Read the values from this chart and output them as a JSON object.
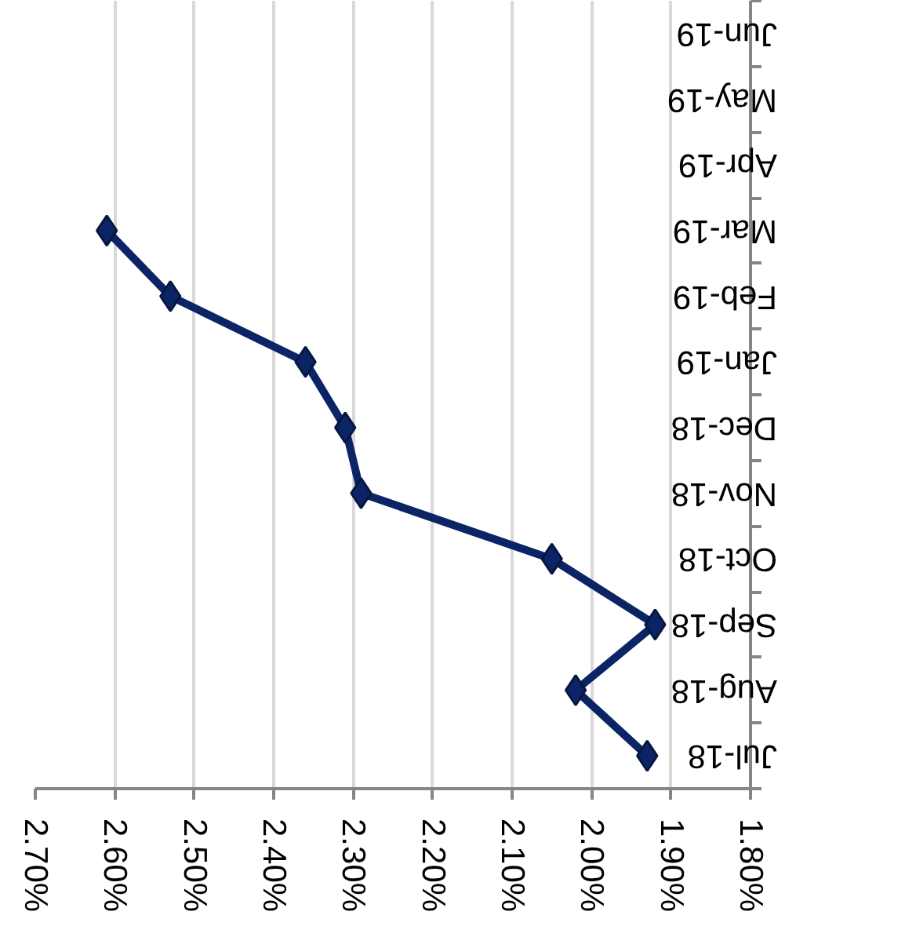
{
  "chart_data": {
    "type": "line",
    "orientation": "horizontal",
    "categories": [
      "Jun-19",
      "May-19",
      "Apr-19",
      "Mar-19",
      "Feb-19",
      "Jan-19",
      "Dec-18",
      "Nov-18",
      "Oct-18",
      "Sep-18",
      "Aug-18",
      "Jul-18"
    ],
    "values": [
      null,
      null,
      null,
      2.61,
      2.53,
      2.36,
      2.31,
      2.29,
      2.05,
      1.92,
      2.02,
      1.93
    ],
    "color": "#0b2465",
    "marker": "diamond",
    "line_style": "solid",
    "grid": "x",
    "xlim": [
      2.7,
      1.8
    ],
    "xticks": [
      {
        "value": 2.7,
        "label": "2.70%"
      },
      {
        "value": 2.6,
        "label": "2.60%"
      },
      {
        "value": 2.5,
        "label": "2.50%"
      },
      {
        "value": 2.4,
        "label": "2.40%"
      },
      {
        "value": 2.3,
        "label": "2.30%"
      },
      {
        "value": 2.2,
        "label": "2.20%"
      },
      {
        "value": 2.1,
        "label": "2.10%"
      },
      {
        "value": 2.0,
        "label": "2.00%"
      },
      {
        "value": 1.9,
        "label": "1.90%"
      },
      {
        "value": 1.8,
        "label": "1.80%"
      }
    ]
  }
}
